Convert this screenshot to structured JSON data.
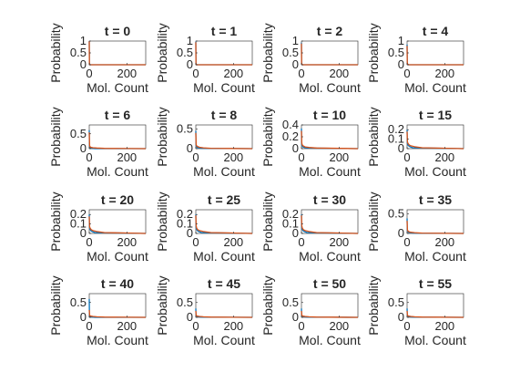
{
  "chart_data": [
    {
      "type": "line",
      "title": "t = 0",
      "xlabel": "Mol. Count",
      "ylabel": "Probability",
      "xlim": [
        0,
        300
      ],
      "ylim": [
        0,
        1
      ],
      "xticks": [
        "0",
        "200"
      ],
      "yticks": [
        "0",
        "0.5",
        "1"
      ],
      "grid": false,
      "series": [
        {
          "color": "#0072BD",
          "x": [
            0,
            1,
            2,
            3,
            5,
            10,
            300
          ],
          "values": [
            1,
            0,
            0,
            0,
            0,
            0,
            0
          ]
        },
        {
          "color": "#D95319",
          "x": [
            0,
            1,
            2,
            3,
            5,
            10,
            300
          ],
          "values": [
            0.99,
            0.01,
            0,
            0,
            0,
            0,
            0
          ]
        }
      ]
    },
    {
      "type": "line",
      "title": "t = 1",
      "xlabel": "Mol. Count",
      "ylabel": "Probability",
      "xlim": [
        0,
        300
      ],
      "ylim": [
        0,
        1
      ],
      "xticks": [
        "0",
        "200"
      ],
      "yticks": [
        "0",
        "0.5",
        "1"
      ],
      "grid": false,
      "series": [
        {
          "color": "#0072BD",
          "x": [
            0,
            1,
            2,
            3,
            5,
            10,
            300
          ],
          "values": [
            0.97,
            0.03,
            0,
            0,
            0,
            0,
            0
          ]
        },
        {
          "color": "#D95319",
          "x": [
            0,
            1,
            2,
            3,
            5,
            10,
            300
          ],
          "values": [
            0.95,
            0.04,
            0.01,
            0,
            0,
            0,
            0
          ]
        }
      ]
    },
    {
      "type": "line",
      "title": "t = 2",
      "xlabel": "Mol. Count",
      "ylabel": "Probability",
      "xlim": [
        0,
        300
      ],
      "ylim": [
        0,
        1
      ],
      "xticks": [
        "0",
        "200"
      ],
      "yticks": [
        "0",
        "0.5",
        "1"
      ],
      "grid": false,
      "series": [
        {
          "color": "#0072BD",
          "x": [
            0,
            1,
            2,
            3,
            5,
            10,
            300
          ],
          "values": [
            0.93,
            0.05,
            0.02,
            0,
            0,
            0,
            0
          ]
        },
        {
          "color": "#D95319",
          "x": [
            0,
            1,
            2,
            3,
            5,
            10,
            300
          ],
          "values": [
            0.9,
            0.07,
            0.02,
            0.01,
            0,
            0,
            0
          ]
        }
      ]
    },
    {
      "type": "line",
      "title": "t = 4",
      "xlabel": "Mol. Count",
      "ylabel": "Probability",
      "xlim": [
        0,
        300
      ],
      "ylim": [
        0,
        1
      ],
      "xticks": [
        "0",
        "200"
      ],
      "yticks": [
        "0",
        "0.5",
        "1"
      ],
      "grid": false,
      "series": [
        {
          "color": "#0072BD",
          "x": [
            0,
            1,
            2,
            3,
            5,
            10,
            300
          ],
          "values": [
            0.85,
            0.1,
            0.03,
            0.01,
            0,
            0,
            0
          ]
        },
        {
          "color": "#D95319",
          "x": [
            0,
            1,
            2,
            3,
            5,
            10,
            300
          ],
          "values": [
            0.8,
            0.12,
            0.05,
            0.02,
            0.01,
            0,
            0
          ]
        }
      ]
    },
    {
      "type": "line",
      "title": "t = 6",
      "xlabel": "Mol. Count",
      "ylabel": "Probability",
      "xlim": [
        0,
        300
      ],
      "ylim": [
        0,
        0.8
      ],
      "xticks": [
        "0",
        "200"
      ],
      "yticks": [
        "0",
        "0.5"
      ],
      "grid": false,
      "series": [
        {
          "color": "#0072BD",
          "x": [
            0,
            1,
            2,
            4,
            8,
            15,
            30,
            300
          ],
          "values": [
            0.62,
            0.12,
            0.07,
            0.04,
            0.02,
            0.01,
            0,
            0
          ]
        },
        {
          "color": "#D95319",
          "x": [
            0,
            2,
            5,
            10,
            20,
            40,
            80,
            300
          ],
          "values": [
            0.55,
            0.1,
            0.06,
            0.04,
            0.03,
            0.02,
            0.01,
            0
          ]
        }
      ]
    },
    {
      "type": "line",
      "title": "t = 8",
      "xlabel": "Mol. Count",
      "ylabel": "Probability",
      "xlim": [
        0,
        300
      ],
      "ylim": [
        0,
        0.6
      ],
      "xticks": [
        "0",
        "200"
      ],
      "yticks": [
        "0",
        "0.5"
      ],
      "grid": false,
      "series": [
        {
          "color": "#0072BD",
          "x": [
            0,
            1,
            2,
            4,
            8,
            15,
            30,
            300
          ],
          "values": [
            0.45,
            0.12,
            0.08,
            0.05,
            0.03,
            0.02,
            0.01,
            0
          ]
        },
        {
          "color": "#D95319",
          "x": [
            0,
            2,
            5,
            10,
            20,
            40,
            80,
            300
          ],
          "values": [
            0.4,
            0.1,
            0.07,
            0.05,
            0.035,
            0.02,
            0.01,
            0
          ]
        }
      ]
    },
    {
      "type": "line",
      "title": "t = 10",
      "xlabel": "Mol. Count",
      "ylabel": "Probability",
      "xlim": [
        0,
        300
      ],
      "ylim": [
        0,
        0.4
      ],
      "xticks": [
        "0",
        "200"
      ],
      "yticks": [
        "0",
        "0.2",
        "0.4"
      ],
      "grid": false,
      "series": [
        {
          "color": "#0072BD",
          "x": [
            0,
            1,
            2,
            4,
            8,
            15,
            30,
            300
          ],
          "values": [
            0.34,
            0.1,
            0.07,
            0.05,
            0.03,
            0.02,
            0.01,
            0
          ]
        },
        {
          "color": "#D95319",
          "x": [
            0,
            2,
            5,
            10,
            20,
            40,
            80,
            300
          ],
          "values": [
            0.3,
            0.09,
            0.06,
            0.045,
            0.03,
            0.02,
            0.01,
            0
          ]
        }
      ]
    },
    {
      "type": "line",
      "title": "t = 15",
      "xlabel": "Mol. Count",
      "ylabel": "Probability",
      "xlim": [
        0,
        300
      ],
      "ylim": [
        0,
        0.25
      ],
      "xticks": [
        "0",
        "200"
      ],
      "yticks": [
        "0",
        "0.1",
        "0.2"
      ],
      "grid": false,
      "series": [
        {
          "color": "#0072BD",
          "x": [
            0,
            1,
            2,
            4,
            8,
            15,
            30,
            300
          ],
          "values": [
            0.2,
            0.08,
            0.06,
            0.04,
            0.03,
            0.02,
            0.01,
            0
          ]
        },
        {
          "color": "#D95319",
          "x": [
            0,
            2,
            5,
            10,
            20,
            40,
            80,
            300
          ],
          "values": [
            0.18,
            0.07,
            0.055,
            0.04,
            0.03,
            0.02,
            0.01,
            0
          ]
        }
      ]
    },
    {
      "type": "line",
      "title": "t = 20",
      "xlabel": "Mol. Count",
      "ylabel": "Probability",
      "xlim": [
        0,
        300
      ],
      "ylim": [
        0,
        0.25
      ],
      "xticks": [
        "0",
        "200"
      ],
      "yticks": [
        "0",
        "0.1",
        "0.2"
      ],
      "grid": false,
      "series": [
        {
          "color": "#0072BD",
          "x": [
            0,
            1,
            2,
            4,
            8,
            15,
            30,
            300
          ],
          "values": [
            0.2,
            0.08,
            0.06,
            0.045,
            0.03,
            0.02,
            0.01,
            0
          ]
        },
        {
          "color": "#D95319",
          "x": [
            0,
            2,
            5,
            10,
            20,
            40,
            80,
            300
          ],
          "values": [
            0.18,
            0.07,
            0.055,
            0.04,
            0.03,
            0.02,
            0.01,
            0
          ]
        }
      ]
    },
    {
      "type": "line",
      "title": "t = 25",
      "xlabel": "Mol. Count",
      "ylabel": "Probability",
      "xlim": [
        0,
        300
      ],
      "ylim": [
        0,
        0.25
      ],
      "xticks": [
        "0",
        "200"
      ],
      "yticks": [
        "0",
        "0.1",
        "0.2"
      ],
      "grid": false,
      "series": [
        {
          "color": "#0072BD",
          "x": [
            0,
            1,
            2,
            4,
            8,
            15,
            30,
            300
          ],
          "values": [
            0.2,
            0.09,
            0.06,
            0.045,
            0.03,
            0.02,
            0.01,
            0
          ]
        },
        {
          "color": "#D95319",
          "x": [
            0,
            2,
            5,
            10,
            20,
            40,
            80,
            300
          ],
          "values": [
            0.19,
            0.08,
            0.055,
            0.04,
            0.03,
            0.02,
            0.01,
            0
          ]
        }
      ]
    },
    {
      "type": "line",
      "title": "t = 30",
      "xlabel": "Mol. Count",
      "ylabel": "Probability",
      "xlim": [
        0,
        300
      ],
      "ylim": [
        0,
        0.25
      ],
      "xticks": [
        "0",
        "200"
      ],
      "yticks": [
        "0",
        "0.1",
        "0.2"
      ],
      "grid": false,
      "series": [
        {
          "color": "#0072BD",
          "x": [
            0,
            1,
            2,
            4,
            8,
            15,
            30,
            300
          ],
          "values": [
            0.2,
            0.09,
            0.06,
            0.045,
            0.03,
            0.02,
            0.01,
            0
          ]
        },
        {
          "color": "#D95319",
          "x": [
            0,
            2,
            5,
            10,
            20,
            40,
            80,
            300
          ],
          "values": [
            0.19,
            0.08,
            0.055,
            0.04,
            0.03,
            0.02,
            0.01,
            0
          ]
        }
      ]
    },
    {
      "type": "line",
      "title": "t = 35",
      "xlabel": "Mol. Count",
      "ylabel": "Probability",
      "xlim": [
        0,
        300
      ],
      "ylim": [
        0,
        0.6
      ],
      "xticks": [
        "0",
        "200"
      ],
      "yticks": [
        "0",
        "0.5"
      ],
      "grid": false,
      "series": [
        {
          "color": "#0072BD",
          "x": [
            0,
            1,
            2,
            4,
            8,
            15,
            30,
            300
          ],
          "values": [
            0.38,
            0.1,
            0.07,
            0.05,
            0.03,
            0.02,
            0.01,
            0
          ]
        },
        {
          "color": "#D95319",
          "x": [
            0,
            2,
            5,
            10,
            20,
            40,
            80,
            300
          ],
          "values": [
            0.32,
            0.09,
            0.06,
            0.045,
            0.03,
            0.02,
            0.01,
            0
          ]
        }
      ]
    },
    {
      "type": "line",
      "title": "t = 40",
      "xlabel": "Mol. Count",
      "ylabel": "Probability",
      "xlim": [
        0,
        300
      ],
      "ylim": [
        0,
        0.8
      ],
      "xticks": [
        "0",
        "200"
      ],
      "yticks": [
        "0",
        "0.5"
      ],
      "grid": false,
      "series": [
        {
          "color": "#0072BD",
          "x": [
            0,
            1,
            2,
            4,
            8,
            15,
            30,
            300
          ],
          "values": [
            0.62,
            0.1,
            0.06,
            0.04,
            0.02,
            0.01,
            0,
            0
          ]
        },
        {
          "color": "#D95319",
          "x": [
            0,
            2,
            5,
            10,
            20,
            40,
            80,
            300
          ],
          "values": [
            0.25,
            0.08,
            0.05,
            0.04,
            0.03,
            0.02,
            0.01,
            0
          ]
        }
      ]
    },
    {
      "type": "line",
      "title": "t = 45",
      "xlabel": "Mol. Count",
      "ylabel": "Probability",
      "xlim": [
        0,
        300
      ],
      "ylim": [
        0,
        0.8
      ],
      "xticks": [
        "0",
        "200"
      ],
      "yticks": [
        "0",
        "0.5"
      ],
      "grid": false,
      "series": [
        {
          "color": "#0072BD",
          "x": [
            0,
            1,
            2,
            4,
            8,
            15,
            30,
            300
          ],
          "values": [
            0.3,
            0.1,
            0.07,
            0.05,
            0.03,
            0.02,
            0.01,
            0
          ]
        },
        {
          "color": "#D95319",
          "x": [
            0,
            2,
            5,
            10,
            20,
            40,
            80,
            300
          ],
          "values": [
            0.22,
            0.08,
            0.05,
            0.04,
            0.03,
            0.02,
            0.01,
            0
          ]
        }
      ]
    },
    {
      "type": "line",
      "title": "t = 50",
      "xlabel": "Mol. Count",
      "ylabel": "Probability",
      "xlim": [
        0,
        300
      ],
      "ylim": [
        0,
        0.8
      ],
      "xticks": [
        "0",
        "200"
      ],
      "yticks": [
        "0",
        "0.5"
      ],
      "grid": false,
      "series": [
        {
          "color": "#0072BD",
          "x": [
            0,
            1,
            2,
            4,
            8,
            15,
            30,
            300
          ],
          "values": [
            0.3,
            0.1,
            0.07,
            0.05,
            0.03,
            0.02,
            0.01,
            0
          ]
        },
        {
          "color": "#D95319",
          "x": [
            0,
            2,
            5,
            10,
            20,
            40,
            80,
            300
          ],
          "values": [
            0.22,
            0.08,
            0.05,
            0.04,
            0.03,
            0.02,
            0.01,
            0
          ]
        }
      ]
    },
    {
      "type": "line",
      "title": "t = 55",
      "xlabel": "Mol. Count",
      "ylabel": "Probability",
      "xlim": [
        0,
        300
      ],
      "ylim": [
        0,
        0.8
      ],
      "xticks": [
        "0",
        "200"
      ],
      "yticks": [
        "0",
        "0.5"
      ],
      "grid": false,
      "series": [
        {
          "color": "#0072BD",
          "x": [
            0,
            1,
            2,
            4,
            8,
            15,
            30,
            300
          ],
          "values": [
            0.3,
            0.1,
            0.07,
            0.05,
            0.03,
            0.02,
            0.01,
            0
          ]
        },
        {
          "color": "#D95319",
          "x": [
            0,
            2,
            5,
            10,
            20,
            40,
            80,
            300
          ],
          "values": [
            0.22,
            0.08,
            0.05,
            0.04,
            0.03,
            0.02,
            0.01,
            0
          ]
        }
      ]
    }
  ]
}
